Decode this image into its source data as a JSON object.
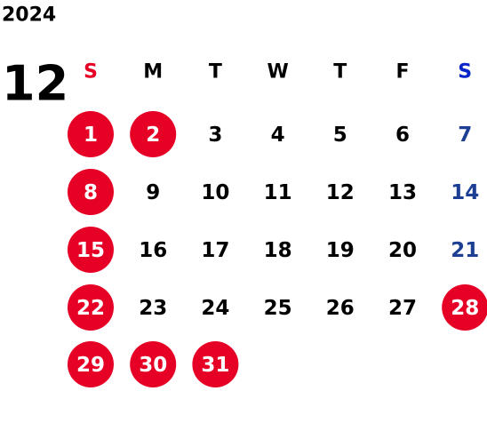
{
  "year": "2024",
  "month": "12",
  "weekdays": [
    "S",
    "M",
    "T",
    "W",
    "T",
    "F",
    "S"
  ],
  "weeks": [
    [
      {
        "day": "1",
        "holiday": true
      },
      {
        "day": "2",
        "holiday": true
      },
      {
        "day": "3",
        "holiday": false
      },
      {
        "day": "4",
        "holiday": false
      },
      {
        "day": "5",
        "holiday": false
      },
      {
        "day": "6",
        "holiday": false
      },
      {
        "day": "7",
        "holiday": false
      }
    ],
    [
      {
        "day": "8",
        "holiday": true
      },
      {
        "day": "9",
        "holiday": false
      },
      {
        "day": "10",
        "holiday": false
      },
      {
        "day": "11",
        "holiday": false
      },
      {
        "day": "12",
        "holiday": false
      },
      {
        "day": "13",
        "holiday": false
      },
      {
        "day": "14",
        "holiday": false
      }
    ],
    [
      {
        "day": "15",
        "holiday": true
      },
      {
        "day": "16",
        "holiday": false
      },
      {
        "day": "17",
        "holiday": false
      },
      {
        "day": "18",
        "holiday": false
      },
      {
        "day": "19",
        "holiday": false
      },
      {
        "day": "20",
        "holiday": false
      },
      {
        "day": "21",
        "holiday": false
      }
    ],
    [
      {
        "day": "22",
        "holiday": true
      },
      {
        "day": "23",
        "holiday": false
      },
      {
        "day": "24",
        "holiday": false
      },
      {
        "day": "25",
        "holiday": false
      },
      {
        "day": "26",
        "holiday": false
      },
      {
        "day": "27",
        "holiday": false
      },
      {
        "day": "28",
        "holiday": true
      }
    ],
    [
      {
        "day": "29",
        "holiday": true
      },
      {
        "day": "30",
        "holiday": true
      },
      {
        "day": "31",
        "holiday": true
      }
    ]
  ]
}
